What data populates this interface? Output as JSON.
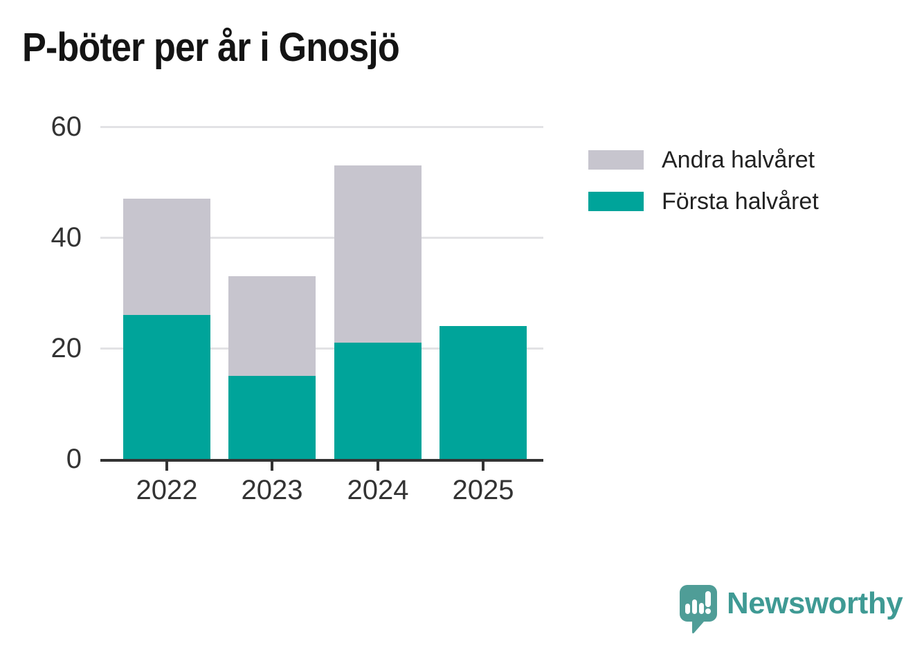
{
  "title": "P-böter per år i Gnosjö",
  "y_axis": {
    "tick_labels": [
      "60",
      "40",
      "20",
      "0"
    ]
  },
  "x_axis": {
    "labels": [
      "2022",
      "2023",
      "2024",
      "2025"
    ]
  },
  "legend": {
    "items": [
      {
        "label": "Andra halvåret",
        "color": "#c7c5ce"
      },
      {
        "label": "Första halvåret",
        "color": "#00a49a"
      }
    ]
  },
  "branding": {
    "name": "Newsworthy",
    "icon": "newsworthy-speech-bubble-chart-icon",
    "icon_color": "#4f9d97",
    "text_color": "#3f9a94"
  },
  "colors": {
    "first_half": "#00a49a",
    "second_half": "#c7c5ce",
    "axis": "#333333",
    "gridline": "#e2e2e5",
    "title_text": "#141414",
    "background": "#ffffff"
  },
  "chart_data": {
    "type": "bar",
    "stacked": true,
    "title": "P-böter per år i Gnosjö",
    "xlabel": "",
    "ylabel": "",
    "categories": [
      "2022",
      "2023",
      "2024",
      "2025"
    ],
    "series": [
      {
        "name": "Första halvåret",
        "color": "#00a49a",
        "values": [
          26,
          15,
          21,
          24
        ]
      },
      {
        "name": "Andra halvåret",
        "color": "#c7c5ce",
        "values": [
          21,
          18,
          32,
          0
        ]
      }
    ],
    "totals": [
      47,
      33,
      53,
      24
    ],
    "ylim": [
      0,
      60
    ],
    "yticks": [
      0,
      20,
      40,
      60
    ],
    "grid": "horizontal-only",
    "legend_position": "right-top"
  }
}
